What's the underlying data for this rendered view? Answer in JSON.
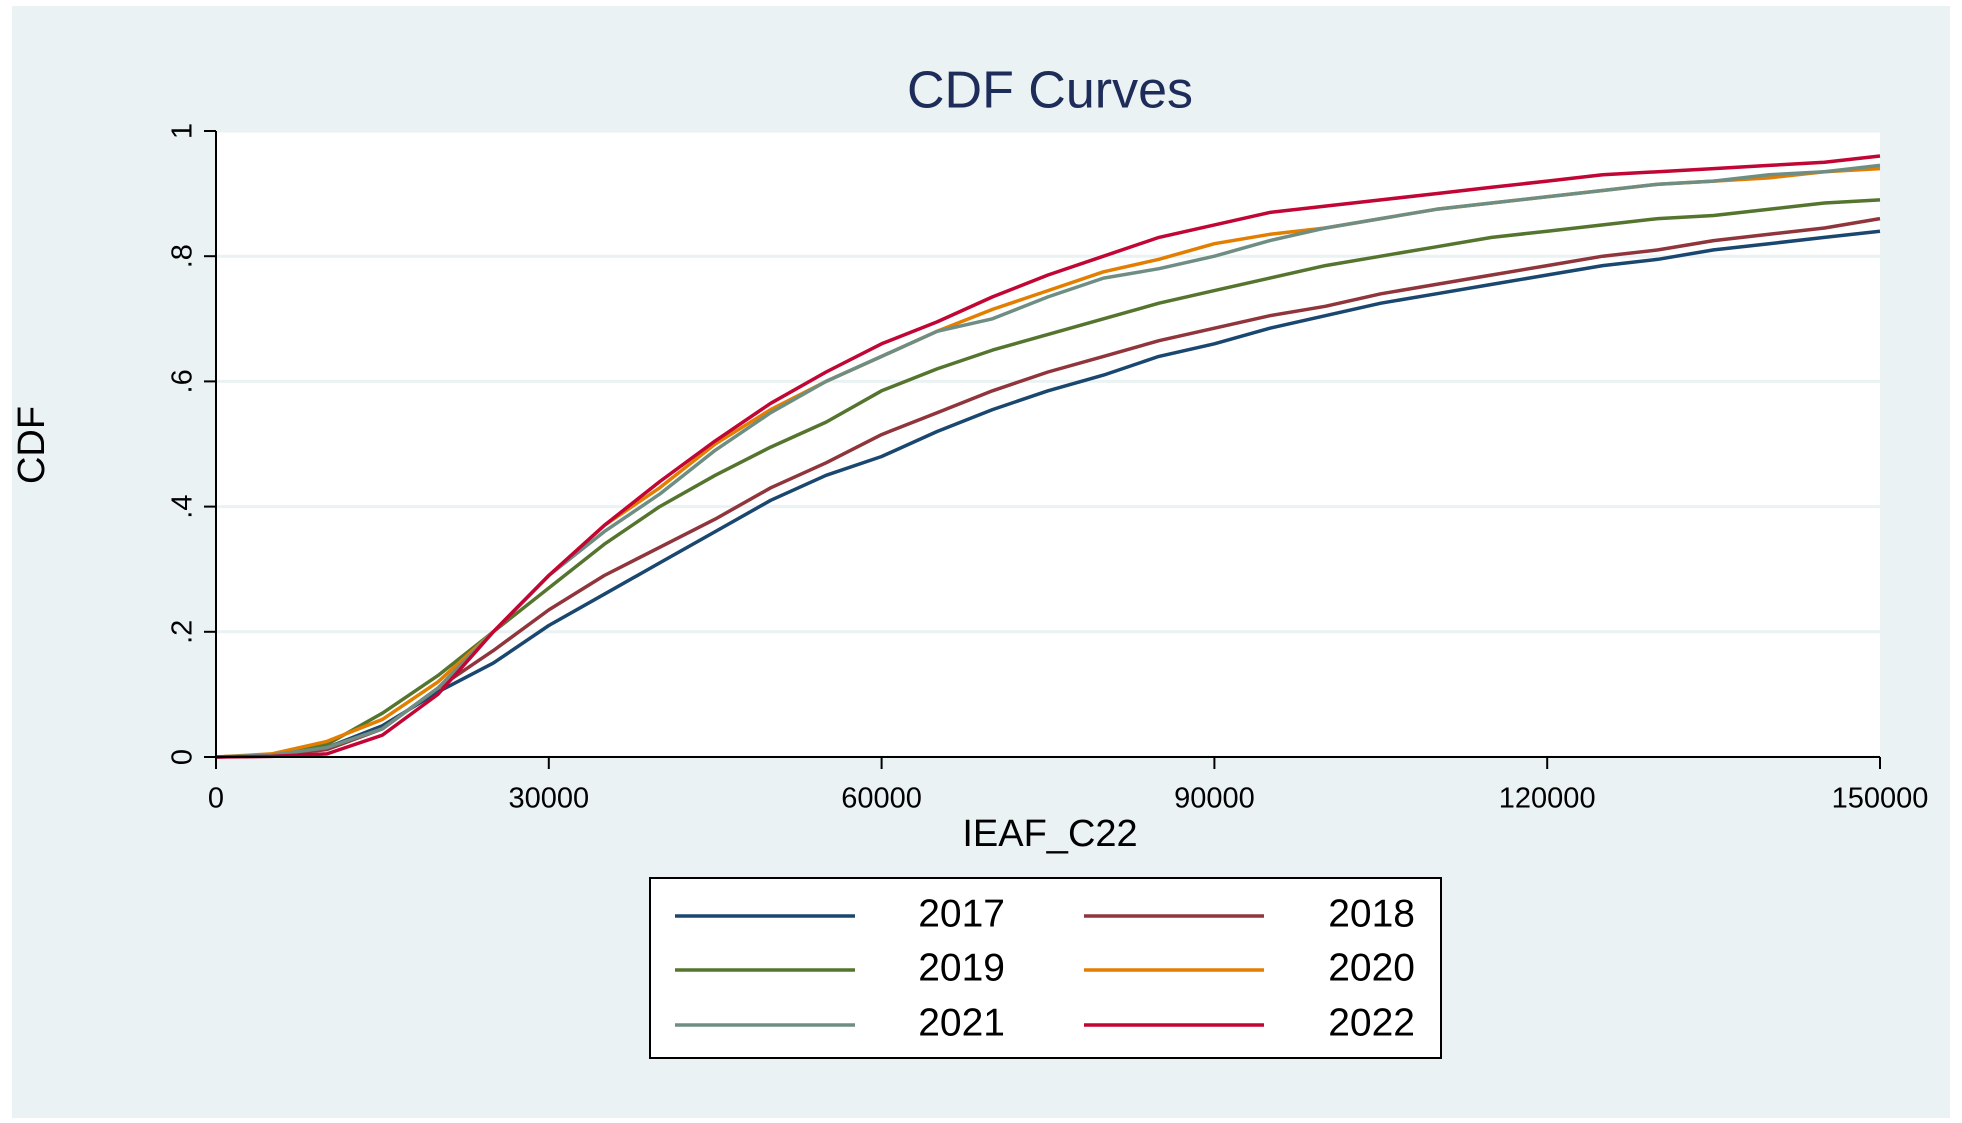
{
  "chart_data": {
    "type": "line",
    "title": "CDF Curves",
    "x_label": "IEAF_C22",
    "y_label": "CDF",
    "x": [
      0,
      5000,
      10000,
      15000,
      20000,
      25000,
      30000,
      35000,
      40000,
      45000,
      50000,
      55000,
      60000,
      65000,
      70000,
      75000,
      80000,
      85000,
      90000,
      95000,
      100000,
      105000,
      110000,
      115000,
      120000,
      125000,
      130000,
      135000,
      140000,
      145000,
      150000
    ],
    "series": [
      {
        "name": "2017",
        "color": "#1a476f",
        "values": [
          0,
          0.002,
          0.015,
          0.05,
          0.104,
          0.15,
          0.21,
          0.26,
          0.31,
          0.36,
          0.41,
          0.45,
          0.48,
          0.52,
          0.555,
          0.585,
          0.61,
          0.64,
          0.66,
          0.685,
          0.705,
          0.725,
          0.74,
          0.755,
          0.77,
          0.785,
          0.795,
          0.81,
          0.82,
          0.83,
          0.84
        ]
      },
      {
        "name": "2018",
        "color": "#90353b",
        "values": [
          0,
          0.002,
          0.012,
          0.045,
          0.11,
          0.17,
          0.235,
          0.29,
          0.335,
          0.38,
          0.43,
          0.47,
          0.515,
          0.55,
          0.585,
          0.615,
          0.64,
          0.665,
          0.685,
          0.705,
          0.72,
          0.74,
          0.755,
          0.77,
          0.785,
          0.8,
          0.81,
          0.825,
          0.835,
          0.845,
          0.86
        ]
      },
      {
        "name": "2019",
        "color": "#55752f",
        "values": [
          0,
          0.003,
          0.02,
          0.07,
          0.13,
          0.2,
          0.27,
          0.34,
          0.4,
          0.45,
          0.495,
          0.535,
          0.585,
          0.62,
          0.65,
          0.675,
          0.7,
          0.725,
          0.745,
          0.765,
          0.785,
          0.8,
          0.815,
          0.83,
          0.84,
          0.85,
          0.86,
          0.865,
          0.875,
          0.885,
          0.89
        ]
      },
      {
        "name": "2020",
        "color": "#e37e00",
        "values": [
          0,
          0.005,
          0.025,
          0.06,
          0.12,
          0.2,
          0.29,
          0.37,
          0.43,
          0.5,
          0.555,
          0.6,
          0.64,
          0.68,
          0.715,
          0.745,
          0.775,
          0.795,
          0.82,
          0.835,
          0.845,
          0.86,
          0.875,
          0.885,
          0.895,
          0.905,
          0.915,
          0.92,
          0.925,
          0.935,
          0.94
        ]
      },
      {
        "name": "2021",
        "color": "#6e8e84",
        "values": [
          0,
          0.003,
          0.015,
          0.045,
          0.11,
          0.2,
          0.29,
          0.36,
          0.42,
          0.49,
          0.55,
          0.6,
          0.64,
          0.68,
          0.7,
          0.735,
          0.765,
          0.78,
          0.8,
          0.825,
          0.845,
          0.86,
          0.875,
          0.885,
          0.895,
          0.905,
          0.915,
          0.92,
          0.93,
          0.935,
          0.945
        ]
      },
      {
        "name": "2022",
        "color": "#c10534",
        "values": [
          0,
          0.001,
          0.005,
          0.035,
          0.1,
          0.2,
          0.29,
          0.37,
          0.44,
          0.505,
          0.565,
          0.615,
          0.66,
          0.695,
          0.735,
          0.77,
          0.8,
          0.83,
          0.85,
          0.87,
          0.88,
          0.89,
          0.9,
          0.91,
          0.92,
          0.93,
          0.935,
          0.94,
          0.945,
          0.95,
          0.96
        ]
      }
    ],
    "xlim": [
      0,
      150000
    ],
    "xticks": [
      0,
      30000,
      60000,
      90000,
      120000,
      150000
    ],
    "ylim": [
      0,
      1
    ],
    "yticks": [
      0,
      {
        "value": 0.2,
        "label": ".2"
      },
      {
        "value": 0.4,
        "label": ".4"
      },
      {
        "value": 0.6,
        "label": ".6"
      },
      {
        "value": 0.8,
        "label": ".8"
      },
      1
    ],
    "grid": true,
    "legend_position": "bottom"
  }
}
